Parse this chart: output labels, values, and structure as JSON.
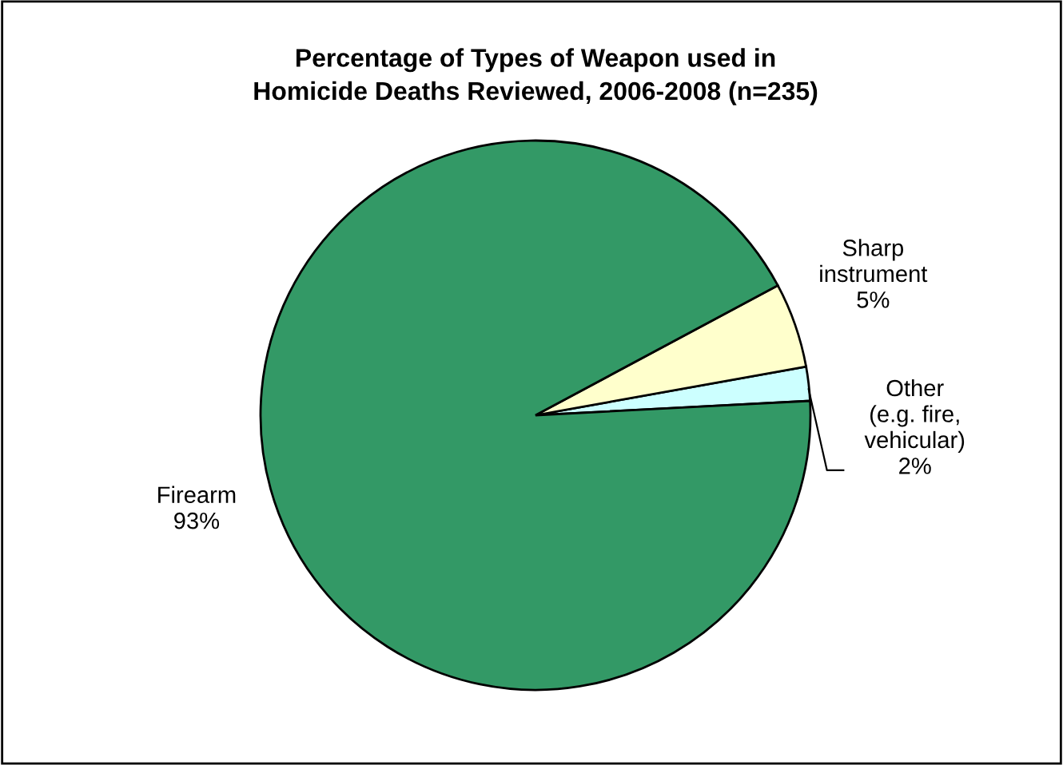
{
  "chart_data": {
    "type": "pie",
    "title": "Percentage of Types of Weapon used in\nHomicide Deaths Reviewed, 2006-2008 (n=235)",
    "categories": [
      "Other\n(e.g. fire,\nvehicular)",
      "Sharp\ninstrument",
      "Firearm"
    ],
    "values": [
      2,
      5,
      93
    ],
    "colors": [
      "#ccffff",
      "#ffffcc",
      "#339966"
    ],
    "value_labels": [
      "2%",
      "5%",
      "93%"
    ]
  }
}
